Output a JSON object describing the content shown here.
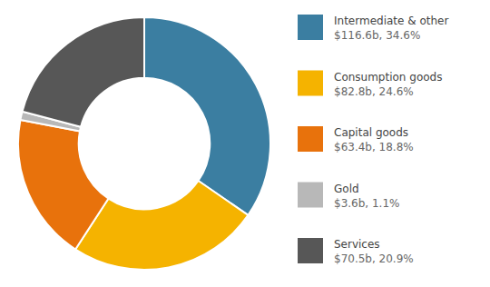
{
  "chart_data": {
    "type": "donut",
    "categories": [
      "Intermediate & other",
      "Consumption goods",
      "Capital goods",
      "Gold",
      "Services"
    ],
    "values": [
      116.6,
      82.8,
      63.4,
      3.6,
      70.5
    ],
    "value_labels": [
      "$116.6b, 34.6%",
      "$82.8b, 24.6%",
      "$63.4b, 18.8%",
      "$3.6b, 1.1%",
      "$70.5b, 20.9%"
    ],
    "colors": [
      "#3b7ea1",
      "#f5b300",
      "#e8720c",
      "#b8b8b8",
      "#575757"
    ],
    "legend": "right"
  }
}
